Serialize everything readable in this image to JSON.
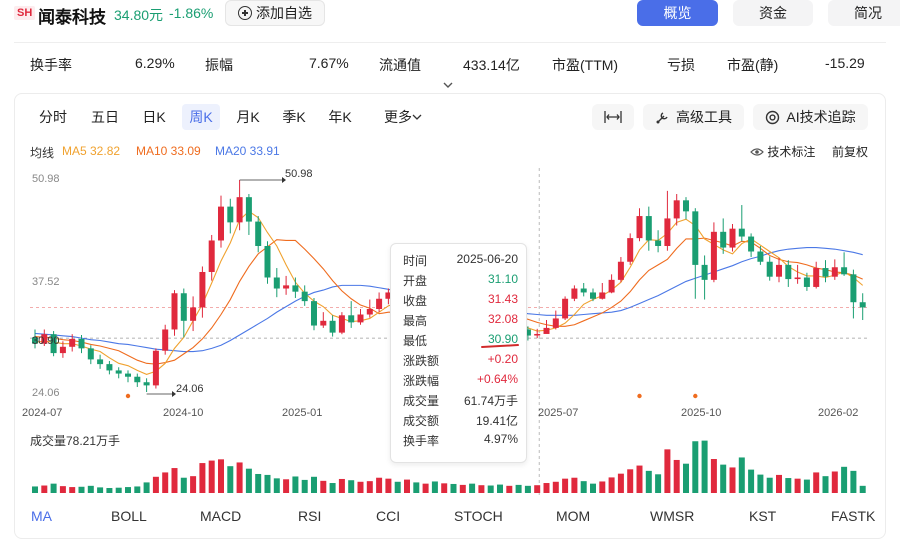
{
  "header": {
    "exchange": "SH",
    "name": "闻泰科技",
    "price": "34.80元",
    "change_pct": "-1.86%",
    "add_watch": "添加自选",
    "nav": [
      "概览",
      "资金",
      "简况"
    ]
  },
  "stats": [
    {
      "label": "换手率",
      "value": "6.29%"
    },
    {
      "label": "振幅",
      "value": "7.67%"
    },
    {
      "label": "流通值",
      "value": "433.14亿"
    },
    {
      "label": "市盈(TTM)",
      "value": "亏损"
    },
    {
      "label": "市盈(静)",
      "value": "-15.29"
    }
  ],
  "period_tabs": [
    "分时",
    "五日",
    "日K",
    "周K",
    "月K",
    "季K",
    "年K"
  ],
  "active_tab": "周K",
  "more_label": "更多",
  "tools": {
    "expand_icon": "expand-horizontal-icon",
    "advanced": "高级工具",
    "ai_track": "AI技术追踪"
  },
  "legend": {
    "title": "均线",
    "ma5": "MA5 32.82",
    "ma10": "MA10 33.09",
    "ma20": "MA20 33.91"
  },
  "right_links": {
    "tech_label": "技术标注",
    "restore": "前复权"
  },
  "y_axis": [
    "50.98",
    "37.52",
    "30.90",
    "24.06"
  ],
  "x_axis": [
    "2024-07",
    "2024-10",
    "2025-01",
    "2025-07",
    "2025-10",
    "2026-02"
  ],
  "annotations": {
    "high": "50.98",
    "low": "24.06"
  },
  "volume_label": "成交量78.21万手",
  "tooltip": {
    "rows": [
      {
        "k": "时间",
        "v": "2025-06-20",
        "c": "neutral"
      },
      {
        "k": "开盘",
        "v": "31.10",
        "c": "down"
      },
      {
        "k": "收盘",
        "v": "31.43",
        "c": "up"
      },
      {
        "k": "最高",
        "v": "32.08",
        "c": "up"
      },
      {
        "k": "最低",
        "v": "30.90",
        "c": "down"
      },
      {
        "k": "涨跌额",
        "v": "+0.20",
        "c": "up"
      },
      {
        "k": "涨跌幅",
        "v": "+0.64%",
        "c": "up"
      },
      {
        "k": "成交量",
        "v": "61.74万手",
        "c": "neutral"
      },
      {
        "k": "成交额",
        "v": "19.41亿",
        "c": "neutral"
      },
      {
        "k": "换手率",
        "v": "4.97%",
        "c": "neutral"
      }
    ]
  },
  "indicators": [
    "MA",
    "BOLL",
    "MACD",
    "RSI",
    "CCI",
    "STOCH",
    "MOM",
    "WMSR",
    "KST",
    "FASTK"
  ],
  "active_indicator": "MA",
  "colors": {
    "up": "#e0293d",
    "down": "#1a9e72",
    "ma5": "#f0a22f",
    "ma10": "#ef6c1f",
    "ma20": "#4b78e6",
    "accent": "#4a6ee8",
    "sh_badge_bg": "#fdecee",
    "sh_badge_fg": "#e0293d",
    "grey": "#888888"
  },
  "chart_data": {
    "type": "candlestick",
    "ylim": [
      24.06,
      50.98
    ],
    "candles": [
      [
        31.0,
        30.2,
        32.0,
        29.6
      ],
      [
        30.2,
        31.4,
        32.0,
        29.9
      ],
      [
        31.4,
        29.0,
        31.8,
        28.6
      ],
      [
        29.0,
        29.8,
        30.5,
        28.4
      ],
      [
        29.8,
        30.8,
        31.4,
        29.2
      ],
      [
        30.8,
        29.6,
        31.3,
        29.0
      ],
      [
        29.6,
        28.2,
        30.0,
        27.6
      ],
      [
        28.2,
        27.6,
        28.8,
        27.0
      ],
      [
        27.6,
        26.8,
        28.0,
        26.3
      ],
      [
        26.8,
        26.4,
        27.2,
        25.8
      ],
      [
        26.4,
        26.0,
        26.8,
        25.3
      ],
      [
        26.0,
        25.3,
        26.4,
        24.7
      ],
      [
        25.3,
        24.9,
        25.8,
        24.06
      ],
      [
        24.9,
        29.3,
        29.6,
        24.5
      ],
      [
        29.3,
        32.0,
        32.6,
        28.8
      ],
      [
        32.0,
        36.6,
        37.0,
        31.2
      ],
      [
        36.6,
        33.1,
        37.2,
        31.0
      ],
      [
        33.1,
        34.8,
        36.2,
        31.8
      ],
      [
        34.8,
        39.3,
        40.0,
        33.5
      ],
      [
        39.3,
        43.3,
        44.0,
        38.2
      ],
      [
        43.3,
        47.6,
        49.0,
        42.4
      ],
      [
        47.6,
        45.6,
        48.6,
        44.2
      ],
      [
        45.6,
        48.8,
        50.98,
        44.6
      ],
      [
        48.8,
        45.7,
        49.2,
        44.0
      ],
      [
        45.7,
        42.6,
        46.4,
        41.8
      ],
      [
        42.6,
        38.6,
        43.2,
        37.8
      ],
      [
        38.6,
        37.2,
        39.8,
        36.1
      ],
      [
        37.2,
        37.6,
        38.8,
        36.4
      ],
      [
        37.6,
        36.8,
        38.6,
        36.0
      ],
      [
        36.8,
        35.6,
        37.6,
        35.0
      ],
      [
        35.6,
        32.5,
        36.0,
        31.9
      ],
      [
        32.5,
        33.1,
        34.2,
        32.2
      ],
      [
        33.1,
        31.6,
        33.8,
        31.1
      ],
      [
        31.6,
        33.8,
        34.2,
        31.4
      ],
      [
        33.8,
        32.9,
        35.6,
        32.2
      ],
      [
        32.9,
        33.9,
        34.6,
        32.6
      ],
      [
        33.9,
        34.6,
        35.8,
        33.5
      ],
      [
        34.6,
        35.9,
        36.7,
        34.2
      ],
      [
        35.9,
        36.7,
        37.2,
        35.2
      ],
      [
        36.7,
        34.8,
        37.0,
        34.3
      ],
      [
        34.8,
        36.7,
        37.2,
        34.2
      ],
      [
        36.7,
        35.3,
        37.0,
        34.5
      ],
      [
        35.3,
        35.8,
        36.5,
        34.9
      ],
      [
        35.8,
        34.4,
        36.4,
        33.8
      ],
      [
        34.4,
        35.0,
        35.9,
        33.9
      ],
      [
        35.0,
        34.0,
        35.5,
        33.6
      ],
      [
        34.0,
        34.8,
        35.4,
        33.2
      ],
      [
        34.8,
        33.6,
        35.0,
        33.0
      ],
      [
        33.6,
        34.4,
        34.9,
        33.2
      ],
      [
        34.4,
        33.4,
        34.8,
        32.8
      ],
      [
        33.4,
        32.6,
        34.0,
        32.0
      ],
      [
        32.6,
        33.2,
        33.6,
        31.8
      ],
      [
        33.2,
        32.0,
        33.5,
        31.3
      ],
      [
        32.0,
        31.23,
        32.4,
        30.6
      ],
      [
        31.23,
        31.43,
        32.08,
        30.9
      ],
      [
        31.43,
        32.2,
        33.2,
        31.6
      ],
      [
        32.2,
        33.4,
        34.4,
        32.0
      ],
      [
        33.4,
        35.9,
        36.2,
        33.2
      ],
      [
        35.9,
        37.2,
        37.6,
        35.6
      ],
      [
        37.2,
        36.7,
        37.9,
        36.2
      ],
      [
        36.7,
        35.9,
        37.2,
        35.6
      ],
      [
        35.9,
        36.7,
        37.9,
        35.8
      ],
      [
        36.7,
        38.3,
        39.0,
        36.6
      ],
      [
        38.3,
        40.6,
        41.2,
        38.0
      ],
      [
        40.6,
        43.6,
        44.2,
        40.2
      ],
      [
        43.6,
        46.4,
        47.4,
        43.2
      ],
      [
        46.4,
        43.3,
        47.6,
        42.0
      ],
      [
        43.3,
        42.6,
        44.6,
        41.8
      ],
      [
        42.6,
        46.1,
        49.6,
        42.0
      ],
      [
        46.1,
        48.4,
        49.2,
        45.2
      ],
      [
        48.4,
        47.0,
        48.8,
        46.0
      ],
      [
        47.0,
        40.2,
        47.4,
        35.9
      ],
      [
        40.2,
        38.3,
        41.4,
        35.8
      ],
      [
        38.3,
        44.4,
        45.6,
        38.0
      ],
      [
        44.4,
        42.4,
        46.1,
        41.6
      ],
      [
        42.4,
        44.8,
        45.4,
        41.9
      ],
      [
        44.8,
        43.8,
        47.8,
        43.2
      ],
      [
        43.8,
        41.9,
        44.2,
        41.2
      ],
      [
        41.9,
        40.6,
        42.6,
        40.2
      ],
      [
        40.6,
        38.7,
        41.3,
        38.2
      ],
      [
        38.7,
        40.2,
        41.1,
        38.0
      ],
      [
        40.2,
        38.4,
        40.8,
        37.4
      ],
      [
        38.4,
        38.6,
        40.2,
        37.8
      ],
      [
        38.6,
        37.4,
        39.2,
        36.9
      ],
      [
        37.4,
        39.8,
        40.6,
        37.2
      ],
      [
        39.8,
        38.7,
        40.8,
        38.0
      ],
      [
        38.7,
        39.9,
        40.9,
        38.3
      ],
      [
        39.9,
        39.0,
        41.8,
        38.8
      ],
      [
        39.0,
        35.46,
        39.6,
        33.4
      ],
      [
        35.46,
        34.8,
        36.6,
        33.2
      ]
    ],
    "ma5": [
      30.4,
      30.5,
      30.4,
      30.2,
      30.2,
      29.9,
      29.5,
      29.2,
      28.4,
      27.7,
      27.4,
      26.8,
      26.3,
      26.7,
      27.7,
      29.6,
      31.0,
      33.1,
      35.2,
      37.9,
      40.7,
      43.0,
      45.9,
      47.0,
      46.2,
      44.3,
      42.6,
      40.2,
      38.0,
      36.6,
      35.6,
      34.9,
      33.8,
      33.4,
      33.0,
      33.1,
      33.4,
      34.2,
      35.0,
      35.4,
      35.7,
      35.9,
      35.9,
      35.4,
      35.2,
      35.0,
      34.8,
      34.6,
      34.1,
      33.7,
      33.4,
      33.1,
      32.6,
      32.2,
      31.8,
      31.9,
      32.2,
      32.8,
      33.9,
      35.2,
      35.8,
      36.3,
      37.0,
      38.0,
      39.9,
      42.1,
      43.4,
      43.3,
      44.2,
      45.6,
      46.0,
      45.2,
      43.5,
      42.8,
      42.1,
      41.6,
      42.9,
      43.5,
      42.7,
      41.9,
      41.1,
      40.0,
      39.3,
      38.8,
      38.8,
      38.6,
      38.9,
      39.3,
      38.6,
      37.6
    ],
    "ma10": [
      31.1,
      31.0,
      30.9,
      30.7,
      30.6,
      30.4,
      30.1,
      29.9,
      29.6,
      29.3,
      28.7,
      28.1,
      27.7,
      27.6,
      27.8,
      28.1,
      28.9,
      29.7,
      30.8,
      32.2,
      33.9,
      35.8,
      38.1,
      40.0,
      41.6,
      42.5,
      43.4,
      43.3,
      43.3,
      42.2,
      41.0,
      39.7,
      38.2,
      36.9,
      35.9,
      35.1,
      34.7,
      34.0,
      34.2,
      34.2,
      34.3,
      34.6,
      35.0,
      35.2,
      35.3,
      35.3,
      35.3,
      35.2,
      34.9,
      34.6,
      34.3,
      34.0,
      33.6,
      33.3,
      32.9,
      32.6,
      32.4,
      32.4,
      32.6,
      33.1,
      33.6,
      34.1,
      34.8,
      35.6,
      36.8,
      38.3,
      39.5,
      40.2,
      40.9,
      42.3,
      43.5,
      43.5,
      43.6,
      43.3,
      43.0,
      42.6,
      43.2,
      43.1,
      42.3,
      41.4,
      40.9,
      40.6,
      40.5,
      40.2,
      39.8,
      39.6,
      39.3,
      39.2,
      38.9,
      38.4
    ],
    "ma20": [
      31.5,
      31.4,
      31.3,
      31.2,
      31.1,
      30.9,
      30.7,
      30.6,
      30.4,
      30.2,
      30.1,
      29.9,
      29.7,
      29.5,
      29.4,
      29.3,
      29.2,
      29.2,
      29.3,
      29.6,
      30.0,
      30.6,
      31.3,
      32.0,
      32.7,
      33.4,
      34.2,
      34.9,
      35.6,
      36.2,
      36.7,
      37.0,
      37.4,
      37.6,
      37.6,
      37.6,
      37.5,
      37.3,
      37.1,
      36.8,
      36.6,
      36.3,
      35.9,
      35.7,
      35.5,
      35.4,
      35.3,
      35.2,
      35.0,
      34.8,
      34.6,
      34.4,
      34.2,
      34.0,
      33.9,
      33.8,
      33.8,
      33.8,
      33.8,
      33.9,
      34.0,
      34.1,
      34.2,
      34.4,
      34.8,
      35.3,
      35.8,
      36.3,
      36.9,
      37.5,
      38.1,
      38.5,
      38.9,
      39.3,
      39.7,
      40.1,
      40.6,
      41.0,
      41.3,
      41.7,
      42.0,
      42.2,
      42.3,
      42.4,
      42.4,
      42.3,
      42.2,
      42.0,
      41.8,
      41.5
    ],
    "volume": [
      2.1,
      2.4,
      3.0,
      2.2,
      1.9,
      2.0,
      2.3,
      1.8,
      1.6,
      1.7,
      1.9,
      2.1,
      3.4,
      5.2,
      6.6,
      8.0,
      4.9,
      5.4,
      9.6,
      10.4,
      10.8,
      8.6,
      9.8,
      7.8,
      6.1,
      5.8,
      4.7,
      4.4,
      5.3,
      4.2,
      5.2,
      3.9,
      3.2,
      4.5,
      4.1,
      3.6,
      3.8,
      4.9,
      4.6,
      3.6,
      4.3,
      3.4,
      3.0,
      3.7,
      3.1,
      2.9,
      2.6,
      3.0,
      2.5,
      2.4,
      2.7,
      2.3,
      2.6,
      2.3,
      2.5,
      3.2,
      3.6,
      4.6,
      4.9,
      3.8,
      3.0,
      3.7,
      5.0,
      6.2,
      7.6,
      8.8,
      7.1,
      6.0,
      14.0,
      10.6,
      9.4,
      16.6,
      16.8,
      10.9,
      9.1,
      8.2,
      11.4,
      7.5,
      5.9,
      4.9,
      5.8,
      4.8,
      4.6,
      4.3,
      6.6,
      5.4,
      6.9,
      8.4,
      7.1,
      2.3
    ]
  }
}
